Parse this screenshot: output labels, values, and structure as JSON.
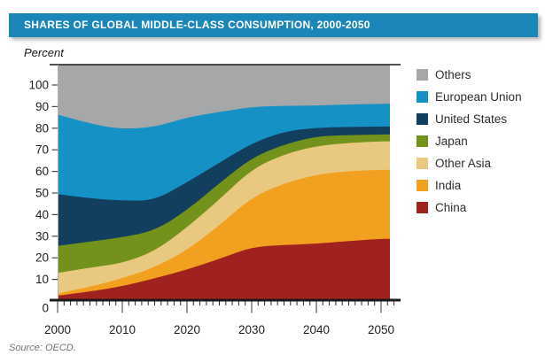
{
  "header": {
    "title": "SHARES OF GLOBAL MIDDLE-CLASS CONSUMPTION, 2000-2050",
    "bar_color": "#1b87b8"
  },
  "footer": {
    "source": "Source: OECD."
  },
  "legend": {
    "position": "right",
    "items": [
      {
        "label": "Others",
        "color": "#a5a7a9"
      },
      {
        "label": "European Union",
        "color": "#1691c5"
      },
      {
        "label": "United States",
        "color": "#133f5f"
      },
      {
        "label": "Japan",
        "color": "#73921c"
      },
      {
        "label": "Other Asia",
        "color": "#e9c87f"
      },
      {
        "label": "India",
        "color": "#f1a11f"
      },
      {
        "label": "China",
        "color": "#a0221e"
      }
    ]
  },
  "chart_data": {
    "type": "area",
    "stacked": true,
    "title": "SHARES OF GLOBAL MIDDLE-CLASS CONSUMPTION, 2000-2050",
    "y_axis_title": "Percent",
    "xlabel": "",
    "ylim": [
      0,
      100
    ],
    "grid": false,
    "legend_position": "right",
    "x": [
      2000,
      2005,
      2010,
      2015,
      2020,
      2025,
      2030,
      2035,
      2040,
      2045,
      2050
    ],
    "x_tick_labels": [
      "2000",
      "2010",
      "2020",
      "2030",
      "2040",
      "2050"
    ],
    "y_ticks": [
      "0",
      "10",
      "20",
      "30",
      "40",
      "50",
      "60",
      "70",
      "80",
      "90",
      "100"
    ],
    "series": [
      {
        "name": "China",
        "color": "#a0221e",
        "values": [
          2.5,
          4.4,
          6.8,
          10.5,
          14.5,
          19.5,
          25.0,
          26.0,
          26.5,
          27.8,
          28.8
        ]
      },
      {
        "name": "India",
        "color": "#f1a11f",
        "values": [
          1.0,
          2.1,
          3.7,
          5.0,
          9.0,
          15.5,
          23.0,
          28.5,
          32.0,
          32.4,
          31.9
        ]
      },
      {
        "name": "Other Asia",
        "color": "#e9c87f",
        "values": [
          9.5,
          9.0,
          7.0,
          7.5,
          10.5,
          12.0,
          13.0,
          13.5,
          13.3,
          13.0,
          13.2
        ]
      },
      {
        "name": "Japan",
        "color": "#73921c",
        "values": [
          12.5,
          12.0,
          12.0,
          9.5,
          8.0,
          7.5,
          5.3,
          4.5,
          4.5,
          3.6,
          3.2
        ]
      },
      {
        "name": "United States",
        "color": "#133f5f",
        "values": [
          24.0,
          20.0,
          17.0,
          14.0,
          13.0,
          9.5,
          6.7,
          6.0,
          4.0,
          3.8,
          3.7
        ]
      },
      {
        "name": "European Union",
        "color": "#1691c5",
        "values": [
          36.8,
          34.5,
          33.0,
          34.0,
          30.0,
          23.5,
          16.9,
          11.8,
          10.2,
          10.4,
          10.5
        ]
      },
      {
        "name": "Others",
        "color": "#a5a7a9",
        "values": [
          13.7,
          18.0,
          20.5,
          19.5,
          15.0,
          12.5,
          10.1,
          9.7,
          9.5,
          9.0,
          8.7
        ]
      }
    ]
  }
}
